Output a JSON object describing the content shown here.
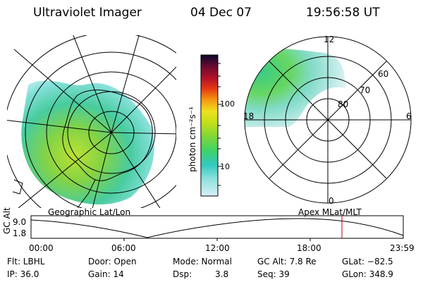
{
  "header": {
    "instrument": "Ultraviolet Imager",
    "date": "04 Dec 07",
    "time": "19:56:58 UT"
  },
  "colorbar": {
    "label": "photon cm⁻²s⁻¹",
    "ticks": [
      "100",
      "10"
    ]
  },
  "geo_map": {
    "caption": "Geographic Lat/Lon"
  },
  "polar_map": {
    "caption": "Apex  MLat/MLT",
    "mlt_labels": {
      "top": "12",
      "left": "18",
      "right": "6",
      "bottom": "0"
    },
    "lat_labels": [
      "60",
      "70",
      "80"
    ]
  },
  "timeline": {
    "axis_label": "GC Alt",
    "y_ticks": [
      "9.0",
      "1.8"
    ],
    "x_ticks": [
      "00:00",
      "06:00",
      "12:00",
      "18:00",
      "23:59"
    ],
    "current_marker_color": "#c00000"
  },
  "info": {
    "filter": "Flt: LBHL",
    "ip": "IP: 36.0",
    "door": "Door: Open",
    "gain": "Gain: 14",
    "mode": "Mode: Normal",
    "dsp_label": "Dsp:",
    "dsp_value": "3.8",
    "gc_alt": "GC Alt: 7.8 Re",
    "seq": "Seq: 39",
    "glat": "GLat: −82.5",
    "glon": "GLon: 348.9"
  }
}
